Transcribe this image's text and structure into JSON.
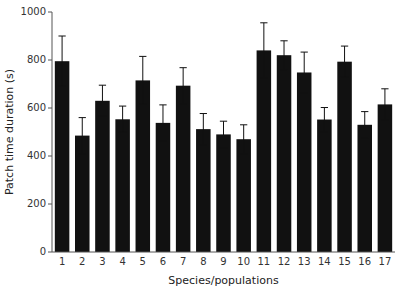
{
  "chart_data": {
    "type": "bar",
    "xlabel": "Species/populations",
    "ylabel": "Patch time duration (s)",
    "categories": [
      1,
      2,
      3,
      4,
      5,
      6,
      7,
      8,
      9,
      10,
      11,
      12,
      13,
      14,
      15,
      16,
      17
    ],
    "values": [
      795,
      485,
      630,
      553,
      715,
      538,
      693,
      512,
      490,
      470,
      840,
      820,
      748,
      552,
      793,
      530,
      615
    ],
    "errors": [
      105,
      75,
      65,
      55,
      100,
      75,
      75,
      65,
      55,
      60,
      115,
      60,
      85,
      50,
      65,
      55,
      65
    ],
    "color": "#111111",
    "ylim": [
      0,
      1000
    ],
    "yticks": [
      0,
      200,
      400,
      600,
      800,
      1000
    ],
    "grid": false
  }
}
